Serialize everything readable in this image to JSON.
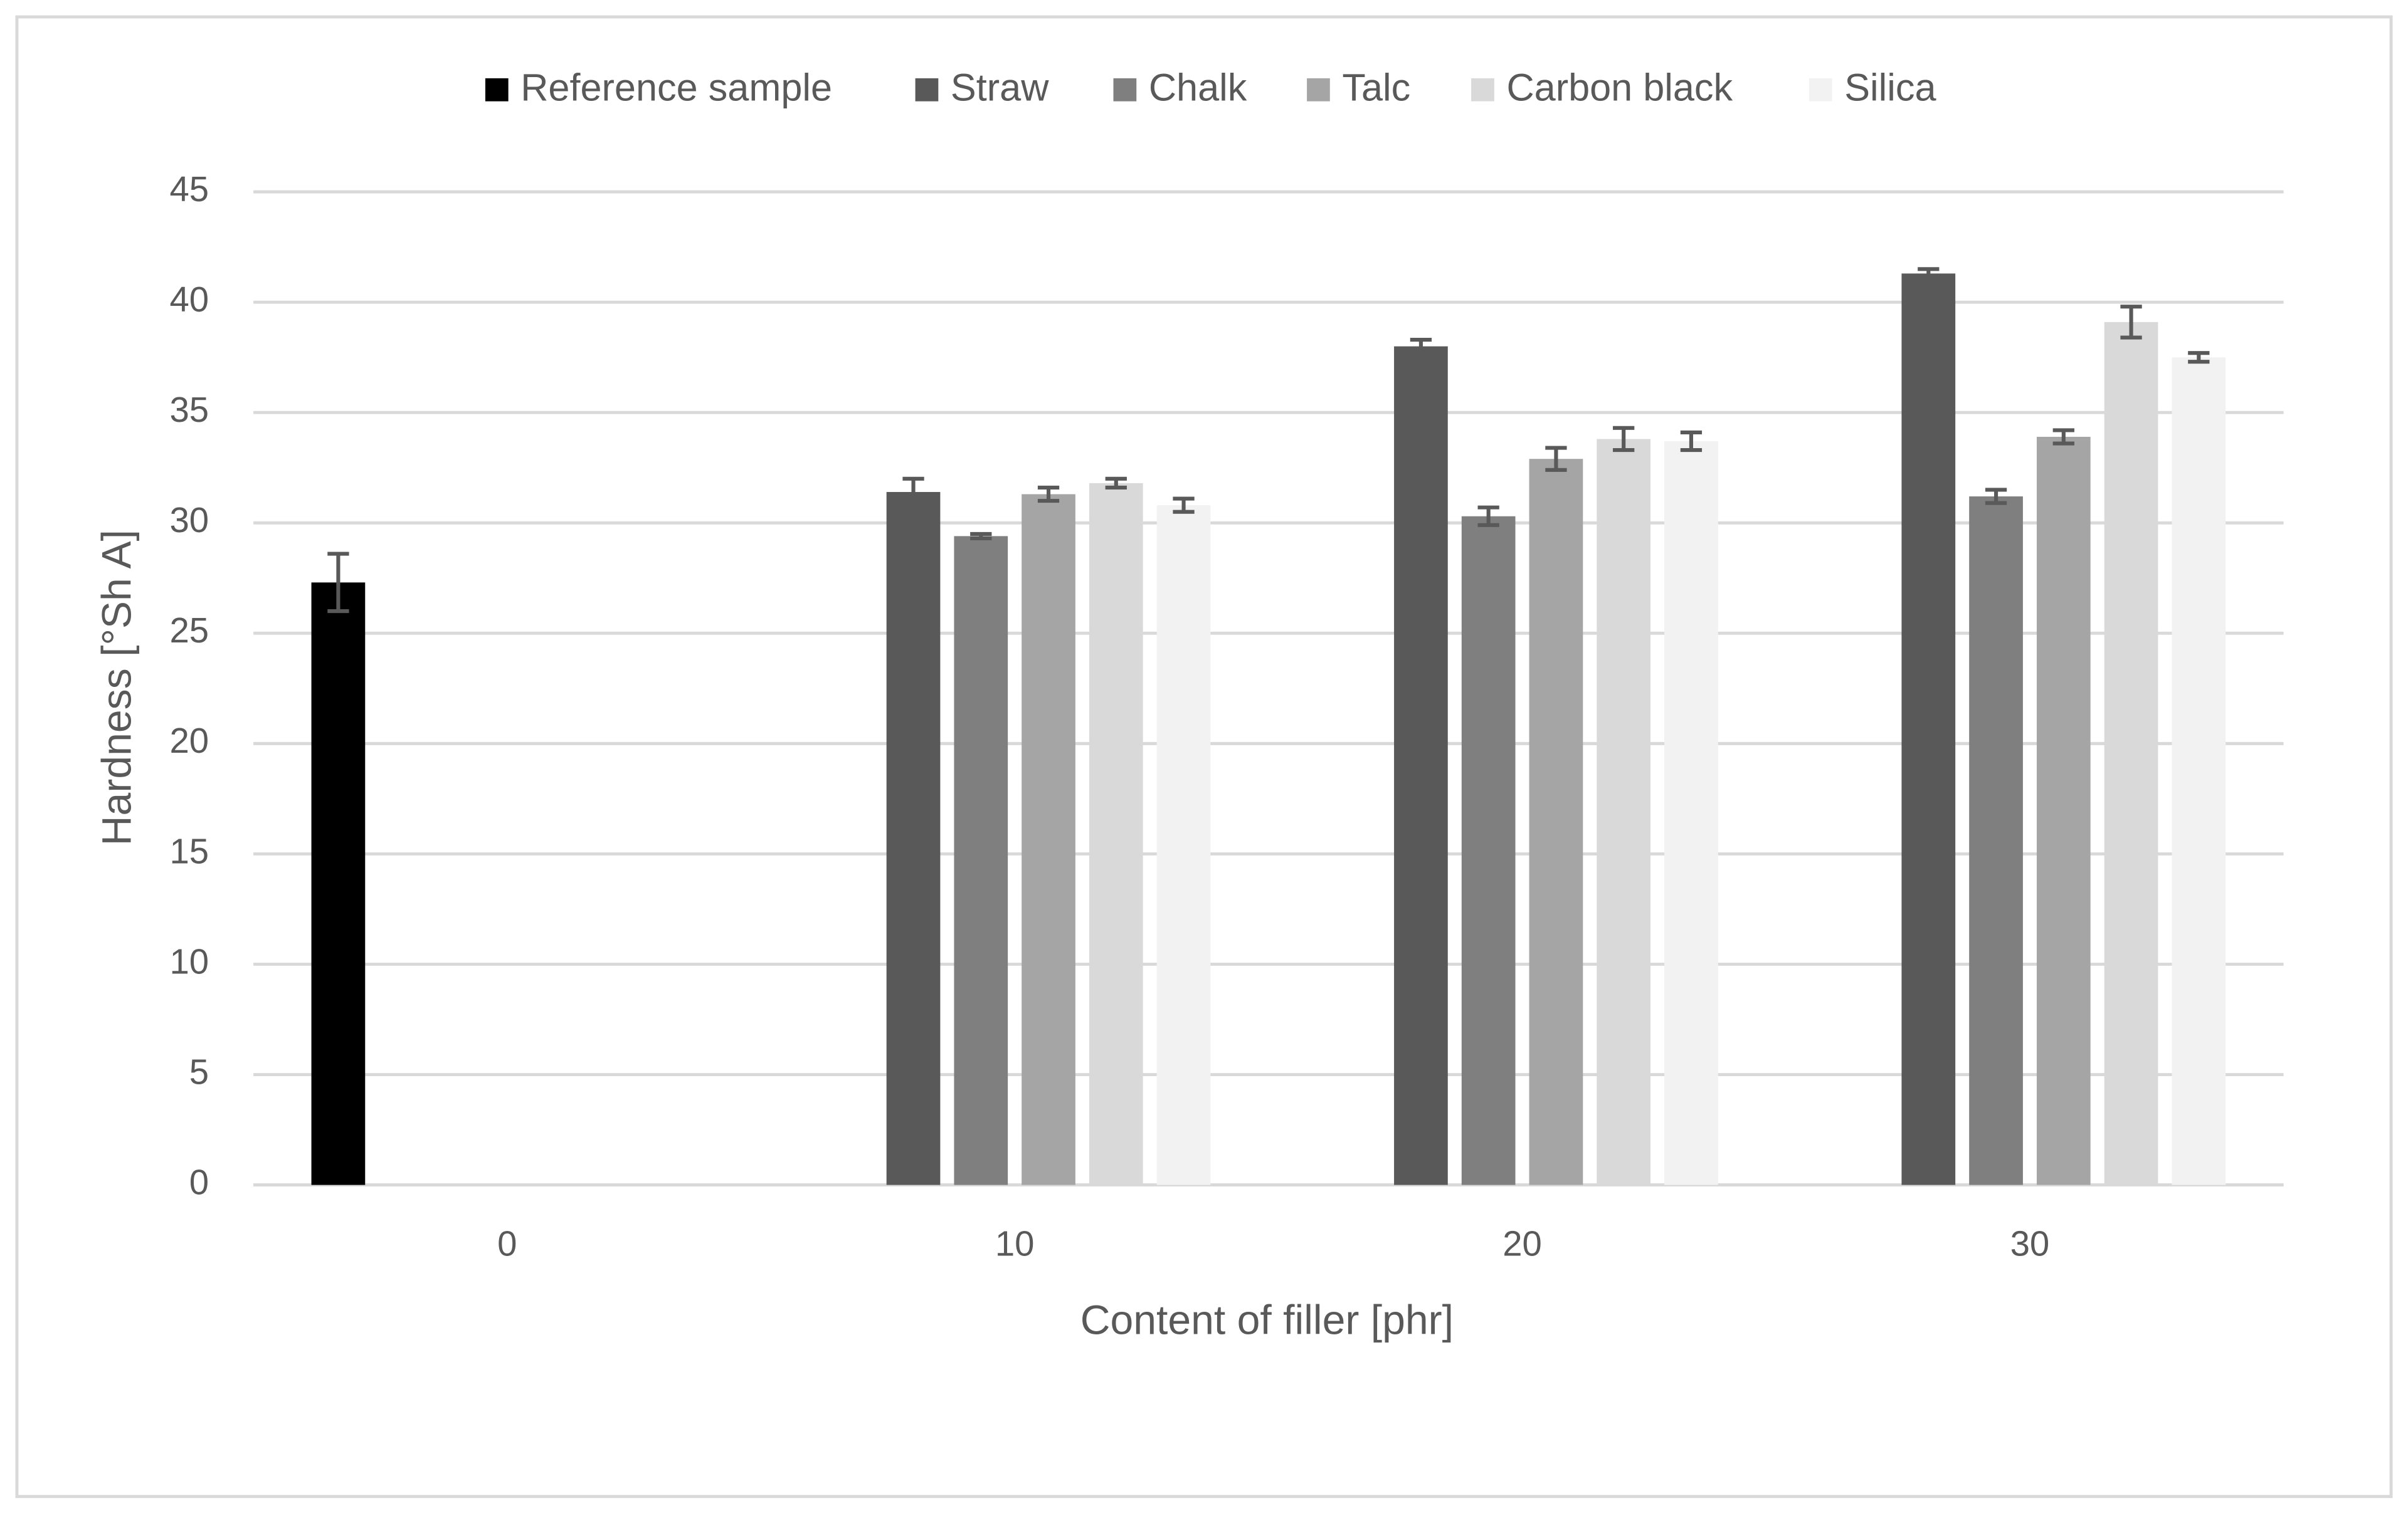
{
  "chart_data": {
    "type": "bar",
    "x_label": "Content of filler [phr]",
    "y_label": "Hardness [°Sh A]",
    "categories": [
      "0",
      "10",
      "20",
      "30"
    ],
    "series": [
      {
        "name": "Reference sample",
        "color": "#000000",
        "values": [
          27.3,
          null,
          null,
          null
        ],
        "errors": [
          1.3,
          null,
          null,
          null
        ]
      },
      {
        "name": "Straw",
        "color": "#595959",
        "values": [
          null,
          31.4,
          38.0,
          41.3
        ],
        "errors": [
          null,
          0.6,
          0.3,
          0.2
        ]
      },
      {
        "name": "Chalk",
        "color": "#7f7f7f",
        "values": [
          null,
          29.4,
          30.3,
          31.2
        ],
        "errors": [
          null,
          0.1,
          0.4,
          0.3
        ]
      },
      {
        "name": "Talc",
        "color": "#a5a5a5",
        "values": [
          null,
          31.3,
          32.9,
          33.9
        ],
        "errors": [
          null,
          0.3,
          0.5,
          0.3
        ]
      },
      {
        "name": "Carbon black",
        "color": "#d9d9d9",
        "values": [
          null,
          31.8,
          33.8,
          39.1
        ],
        "errors": [
          null,
          0.2,
          0.5,
          0.7
        ]
      },
      {
        "name": "Silica",
        "color": "#f2f2f2",
        "values": [
          null,
          30.8,
          33.7,
          37.5
        ],
        "errors": [
          null,
          0.3,
          0.4,
          0.2
        ]
      }
    ],
    "ylim": [
      0,
      45
    ],
    "yticks": [
      0,
      5,
      10,
      15,
      20,
      25,
      30,
      35,
      40,
      45
    ],
    "grid": true,
    "legend": "top"
  }
}
